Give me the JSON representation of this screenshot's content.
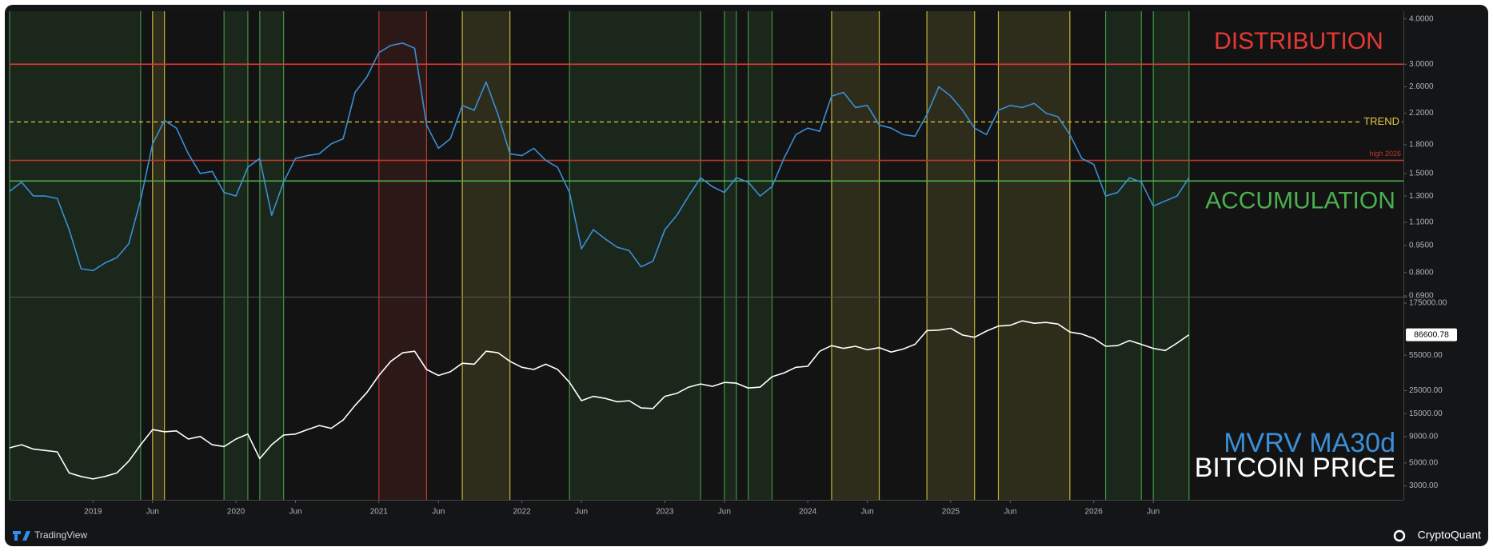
{
  "chart_data": [
    {
      "type": "line",
      "log_y": true,
      "x": [
        "2018-06",
        "2018-07",
        "2018-08",
        "2018-09",
        "2018-10",
        "2018-11",
        "2018-12",
        "2019-01",
        "2019-02",
        "2019-03",
        "2019-04",
        "2019-05",
        "2019-06",
        "2019-07",
        "2019-08",
        "2019-09",
        "2019-10",
        "2019-11",
        "2019-12",
        "2020-01",
        "2020-02",
        "2020-03",
        "2020-04",
        "2020-05",
        "2020-06",
        "2020-07",
        "2020-08",
        "2020-09",
        "2020-10",
        "2020-11",
        "2020-12",
        "2021-01",
        "2021-02",
        "2021-03",
        "2021-04",
        "2021-05",
        "2021-06",
        "2021-07",
        "2021-08",
        "2021-09",
        "2021-10",
        "2021-11",
        "2021-12",
        "2022-01",
        "2022-02",
        "2022-03",
        "2022-04",
        "2022-05",
        "2022-06",
        "2022-07",
        "2022-08",
        "2022-09",
        "2022-10",
        "2022-11",
        "2022-12",
        "2023-01",
        "2023-02",
        "2023-03",
        "2023-04",
        "2023-05",
        "2023-06",
        "2023-07",
        "2023-08",
        "2023-09",
        "2023-10",
        "2023-11",
        "2023-12",
        "2024-01",
        "2024-02",
        "2024-03",
        "2024-04",
        "2024-05",
        "2024-06",
        "2024-07",
        "2024-08",
        "2024-09",
        "2024-10",
        "2024-11",
        "2024-12",
        "2025-01",
        "2025-02",
        "2025-03",
        "2025-04",
        "2025-05",
        "2025-06",
        "2025-07",
        "2025-08",
        "2025-09",
        "2025-10",
        "2025-11",
        "2025-12",
        "2026-01",
        "2026-02",
        "2026-03",
        "2026-04",
        "2026-05",
        "2026-06",
        "2026-07",
        "2026-08",
        "2026-09"
      ],
      "xlim": [
        "2018-06",
        "2028-03"
      ],
      "series": [
        {
          "name": "MVRV MA30d",
          "color": "#3a8fd6",
          "values": [
            1.34,
            1.42,
            1.3,
            1.3,
            1.28,
            1.05,
            0.82,
            0.81,
            0.85,
            0.88,
            0.96,
            1.27,
            1.81,
            2.1,
            2.0,
            1.7,
            1.5,
            1.52,
            1.33,
            1.3,
            1.56,
            1.65,
            1.15,
            1.42,
            1.65,
            1.68,
            1.7,
            1.81,
            1.87,
            2.51,
            2.77,
            3.23,
            3.38,
            3.43,
            3.32,
            2.04,
            1.76,
            1.87,
            2.31,
            2.24,
            2.68,
            2.18,
            1.7,
            1.68,
            1.76,
            1.63,
            1.56,
            1.33,
            0.93,
            1.05,
            0.99,
            0.94,
            0.92,
            0.83,
            0.86,
            1.05,
            1.15,
            1.3,
            1.46,
            1.38,
            1.33,
            1.46,
            1.42,
            1.3,
            1.38,
            1.65,
            1.92,
            2.0,
            1.96,
            2.45,
            2.51,
            2.28,
            2.31,
            2.04,
            2.0,
            1.92,
            1.9,
            2.18,
            2.6,
            2.45,
            2.24,
            2.0,
            1.92,
            2.24,
            2.31,
            2.28,
            2.34,
            2.2,
            2.15,
            1.92,
            1.65,
            1.59,
            1.3,
            1.33,
            1.46,
            1.42,
            1.22,
            1.26,
            1.3,
            1.46
          ]
        }
      ],
      "ylim": [
        0.69,
        4.2
      ],
      "yticks": [
        {
          "value": 0.69,
          "label": "0.6900"
        },
        {
          "value": 0.8,
          "label": "0.8000"
        },
        {
          "value": 0.95,
          "label": "0.9500"
        },
        {
          "value": 1.1,
          "label": "1.1000"
        },
        {
          "value": 1.3,
          "label": "1.3000"
        },
        {
          "value": 1.5,
          "label": "1.5000"
        },
        {
          "value": 1.8,
          "label": "1.8000"
        },
        {
          "value": 2.2,
          "label": "2.2000"
        },
        {
          "value": 2.6,
          "label": "2.6000"
        },
        {
          "value": 3,
          "label": "3.0000"
        },
        {
          "value": 4,
          "label": "4.0000"
        }
      ],
      "levels": [
        {
          "name": "DISTRIBUTION",
          "value": 3.0,
          "color": "#e53935",
          "dashed": false
        },
        {
          "name": "TREND",
          "value": 2.08,
          "color": "#e6c84a",
          "dashed": true
        },
        {
          "name": "high 2026",
          "value": 1.63,
          "color": "#c0392b",
          "dashed": false
        },
        {
          "name": "ACCUMULATION",
          "value": 1.43,
          "color": "#4caf50",
          "dashed": false
        }
      ],
      "bands": [
        {
          "start": "2018-06",
          "end": "2019-05",
          "color": "#4caf50"
        },
        {
          "start": "2019-06",
          "end": "2019-07",
          "color": "#e6d84a"
        },
        {
          "start": "2019-12",
          "end": "2020-02",
          "color": "#4caf50"
        },
        {
          "start": "2020-03",
          "end": "2020-05",
          "color": "#4caf50"
        },
        {
          "start": "2021-01",
          "end": "2021-05",
          "color": "#e04040"
        },
        {
          "start": "2021-08",
          "end": "2021-12",
          "color": "#e6d84a"
        },
        {
          "start": "2022-05",
          "end": "2023-04",
          "color": "#4caf50"
        },
        {
          "start": "2023-06",
          "end": "2023-07",
          "color": "#4caf50"
        },
        {
          "start": "2023-08",
          "end": "2023-10",
          "color": "#4caf50"
        },
        {
          "start": "2024-03",
          "end": "2024-07",
          "color": "#e6d84a"
        },
        {
          "start": "2024-11",
          "end": "2025-03",
          "color": "#e6d84a"
        },
        {
          "start": "2025-05",
          "end": "2025-11",
          "color": "#e6d84a"
        },
        {
          "start": "2026-02",
          "end": "2026-05",
          "color": "#4caf50"
        },
        {
          "start": "2026-06",
          "end": "2026-09",
          "color": "#4caf50"
        }
      ]
    },
    {
      "type": "line",
      "log_y": true,
      "x": [
        "2018-06",
        "2018-07",
        "2018-08",
        "2018-09",
        "2018-10",
        "2018-11",
        "2018-12",
        "2019-01",
        "2019-02",
        "2019-03",
        "2019-04",
        "2019-05",
        "2019-06",
        "2019-07",
        "2019-08",
        "2019-09",
        "2019-10",
        "2019-11",
        "2019-12",
        "2020-01",
        "2020-02",
        "2020-03",
        "2020-04",
        "2020-05",
        "2020-06",
        "2020-07",
        "2020-08",
        "2020-09",
        "2020-10",
        "2020-11",
        "2020-12",
        "2021-01",
        "2021-02",
        "2021-03",
        "2021-04",
        "2021-05",
        "2021-06",
        "2021-07",
        "2021-08",
        "2021-09",
        "2021-10",
        "2021-11",
        "2021-12",
        "2022-01",
        "2022-02",
        "2022-03",
        "2022-04",
        "2022-05",
        "2022-06",
        "2022-07",
        "2022-08",
        "2022-09",
        "2022-10",
        "2022-11",
        "2022-12",
        "2023-01",
        "2023-02",
        "2023-03",
        "2023-04",
        "2023-05",
        "2023-06",
        "2023-07",
        "2023-08",
        "2023-09",
        "2023-10",
        "2023-11",
        "2023-12",
        "2024-01",
        "2024-02",
        "2024-03",
        "2024-04",
        "2024-05",
        "2024-06",
        "2024-07",
        "2024-08",
        "2024-09",
        "2024-10",
        "2024-11",
        "2024-12",
        "2025-01",
        "2025-02",
        "2025-03",
        "2025-04",
        "2025-05",
        "2025-06",
        "2025-07",
        "2025-08",
        "2025-09",
        "2025-10",
        "2025-11",
        "2025-12",
        "2026-01",
        "2026-02",
        "2026-03",
        "2026-04",
        "2026-05",
        "2026-06",
        "2026-07",
        "2026-08",
        "2026-09"
      ],
      "xlim": [
        "2018-06",
        "2028-03"
      ],
      "xticks": [
        {
          "value": "2019-01",
          "label": "2019"
        },
        {
          "value": "2019-06",
          "label": "Jun"
        },
        {
          "value": "2020-01",
          "label": "2020"
        },
        {
          "value": "2020-06",
          "label": "Jun"
        },
        {
          "value": "2021-01",
          "label": "2021"
        },
        {
          "value": "2021-06",
          "label": "Jun"
        },
        {
          "value": "2022-01",
          "label": "2022"
        },
        {
          "value": "2022-06",
          "label": "Jun"
        },
        {
          "value": "2023-01",
          "label": "2023"
        },
        {
          "value": "2023-06",
          "label": "Jun"
        },
        {
          "value": "2024-01",
          "label": "2024"
        },
        {
          "value": "2024-06",
          "label": "Jun"
        },
        {
          "value": "2025-01",
          "label": "2025"
        },
        {
          "value": "2025-06",
          "label": "Jun"
        },
        {
          "value": "2026-01",
          "label": "2026"
        },
        {
          "value": "2026-06",
          "label": "Jun"
        }
      ],
      "series": [
        {
          "name": "BITCOIN PRICE",
          "color": "#ffffff",
          "values": [
            7000,
            7500,
            6800,
            6600,
            6400,
            4000,
            3700,
            3500,
            3700,
            4000,
            5200,
            7500,
            10500,
            10000,
            10200,
            8500,
            9000,
            7500,
            7200,
            8500,
            9500,
            5500,
            7500,
            9300,
            9500,
            10500,
            11500,
            10800,
            13000,
            18000,
            24000,
            35000,
            48000,
            58000,
            60000,
            40000,
            35000,
            38000,
            46000,
            45000,
            60000,
            58000,
            48000,
            42000,
            40000,
            45000,
            40000,
            30000,
            20000,
            22000,
            21000,
            19500,
            20000,
            17000,
            16800,
            22000,
            23500,
            27000,
            29000,
            27500,
            30000,
            29500,
            26500,
            27000,
            34000,
            37000,
            42000,
            43000,
            60000,
            68000,
            64000,
            67000,
            62000,
            65000,
            59000,
            63000,
            70000,
            95000,
            96000,
            100000,
            86000,
            82000,
            94000,
            105000,
            107000,
            118000,
            112000,
            114000,
            110000,
            92000,
            88000,
            80000,
            67000,
            68000,
            76000,
            70000,
            64000,
            61000,
            72000,
            86600.78
          ]
        }
      ],
      "ylim": [
        2200,
        195000
      ],
      "yticks": [
        {
          "value": 3000,
          "label": "3000.00"
        },
        {
          "value": 5000,
          "label": "5000.00"
        },
        {
          "value": 9000,
          "label": "9000.00"
        },
        {
          "value": 15000,
          "label": "15000.00"
        },
        {
          "value": 25000,
          "label": "25000.00"
        },
        {
          "value": 55000,
          "label": "55000.00"
        },
        {
          "value": 175000,
          "label": "175000.00"
        }
      ]
    }
  ],
  "footer": {
    "left": "TradingView",
    "right": "CryptoQuant"
  }
}
